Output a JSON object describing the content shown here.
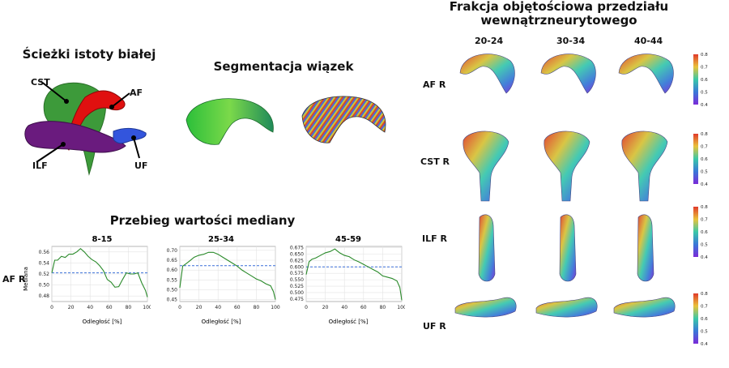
{
  "wm": {
    "title": "Ścieżki istoty białej",
    "labels": {
      "cst": "CST",
      "af": "AF",
      "ilf": "ILF",
      "uf": "UF"
    },
    "colors": {
      "cst": "#3d9a3a",
      "af": "#e01010",
      "ilf": "#6a1b7e",
      "uf": "#3355dd"
    }
  },
  "seg": {
    "title": "Segmentacja wiązek"
  },
  "med": {
    "title": "Przebieg wartości mediany",
    "row_label": "AF R",
    "ylabel": "Mediana",
    "xlabel": "Odległość [%]",
    "panels": [
      {
        "title": "8-15",
        "yticks": [
          "0.48",
          "0.50",
          "0.52",
          "0.54",
          "0.56"
        ],
        "xticks": [
          "0",
          "20",
          "40",
          "60",
          "80",
          "100"
        ]
      },
      {
        "title": "25-34",
        "yticks": [
          "0.45",
          "0.50",
          "0.55",
          "0.60",
          "0.65",
          "0.70"
        ],
        "xticks": [
          "0",
          "20",
          "40",
          "60",
          "80",
          "100"
        ]
      },
      {
        "title": "45-59",
        "yticks": [
          "0.475",
          "0.500",
          "0.525",
          "0.550",
          "0.575",
          "0.600",
          "0.625",
          "0.650",
          "0.675"
        ],
        "xticks": [
          "0",
          "20",
          "40",
          "60",
          "80",
          "100"
        ]
      }
    ]
  },
  "chart_data": [
    {
      "type": "line",
      "title": "8-15",
      "xlabel": "Odległość [%]",
      "ylabel": "Mediana",
      "xlim": [
        0,
        100
      ],
      "ylim": [
        0.47,
        0.57
      ],
      "x": [
        0,
        3,
        6,
        10,
        14,
        18,
        22,
        26,
        30,
        34,
        38,
        42,
        46,
        50,
        54,
        58,
        62,
        66,
        70,
        74,
        78,
        82,
        86,
        90,
        94,
        98,
        100
      ],
      "series": [
        {
          "values": [
            0.522,
            0.545,
            0.545,
            0.552,
            0.55,
            0.556,
            0.556,
            0.56,
            0.566,
            0.56,
            0.552,
            0.546,
            0.542,
            0.535,
            0.526,
            0.51,
            0.505,
            0.496,
            0.497,
            0.51,
            0.522,
            0.52,
            0.52,
            0.522,
            0.504,
            0.49,
            0.478
          ]
        },
        {
          "values": [
            0.522,
            0.522,
            0.522,
            0.522,
            0.522,
            0.522,
            0.522,
            0.522,
            0.522,
            0.522,
            0.522,
            0.522,
            0.522,
            0.522,
            0.522,
            0.522,
            0.522,
            0.522,
            0.522,
            0.522,
            0.522,
            0.522,
            0.522,
            0.522,
            0.522,
            0.522,
            0.522
          ]
        }
      ]
    },
    {
      "type": "line",
      "title": "25-34",
      "xlabel": "Odległość [%]",
      "ylabel": "",
      "xlim": [
        0,
        100
      ],
      "ylim": [
        0.44,
        0.72
      ],
      "x": [
        0,
        3,
        6,
        10,
        15,
        20,
        25,
        30,
        35,
        40,
        45,
        50,
        55,
        60,
        65,
        70,
        75,
        80,
        85,
        90,
        95,
        98,
        100
      ],
      "series": [
        {
          "values": [
            0.51,
            0.62,
            0.63,
            0.645,
            0.665,
            0.675,
            0.68,
            0.69,
            0.69,
            0.68,
            0.665,
            0.65,
            0.635,
            0.62,
            0.6,
            0.585,
            0.57,
            0.555,
            0.545,
            0.53,
            0.52,
            0.49,
            0.45
          ]
        },
        {
          "values": [
            0.622,
            0.622,
            0.622,
            0.622,
            0.622,
            0.622,
            0.622,
            0.622,
            0.622,
            0.622,
            0.622,
            0.622,
            0.622,
            0.622,
            0.622,
            0.622,
            0.622,
            0.622,
            0.622,
            0.622,
            0.622,
            0.622,
            0.622
          ]
        }
      ]
    },
    {
      "type": "line",
      "title": "45-59",
      "xlabel": "Odległość [%]",
      "ylabel": "",
      "xlim": [
        0,
        100
      ],
      "ylim": [
        0.465,
        0.68
      ],
      "x": [
        0,
        3,
        6,
        10,
        15,
        20,
        25,
        30,
        35,
        40,
        45,
        50,
        55,
        60,
        65,
        70,
        75,
        80,
        85,
        90,
        95,
        98,
        100
      ],
      "series": [
        {
          "values": [
            0.57,
            0.62,
            0.63,
            0.635,
            0.645,
            0.655,
            0.66,
            0.67,
            0.655,
            0.645,
            0.64,
            0.628,
            0.62,
            0.61,
            0.6,
            0.59,
            0.58,
            0.565,
            0.56,
            0.555,
            0.545,
            0.52,
            0.47
          ]
        },
        {
          "values": [
            0.6,
            0.6,
            0.6,
            0.6,
            0.6,
            0.6,
            0.6,
            0.6,
            0.6,
            0.6,
            0.6,
            0.6,
            0.6,
            0.6,
            0.6,
            0.6,
            0.6,
            0.6,
            0.6,
            0.6,
            0.6,
            0.6,
            0.6
          ]
        }
      ]
    }
  ],
  "fr": {
    "title_line1": "Frakcja objętościowa przedziału",
    "title_line2": "wewnątrzneurytowego",
    "cols": [
      "20-24",
      "30-34",
      "40-44"
    ],
    "rows": [
      "AF R",
      "CST R",
      "ILF R",
      "UF R"
    ],
    "cbar_ticks": [
      "0.8",
      "0.7",
      "0.6",
      "0.5",
      "0.4"
    ]
  },
  "line_colors": {
    "data": "#2a8a2a",
    "mean": "#3a6fd8"
  }
}
